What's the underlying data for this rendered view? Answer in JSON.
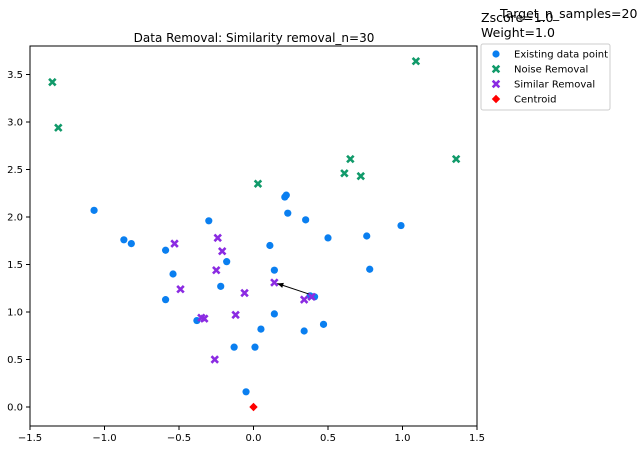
{
  "chart_data": {
    "type": "scatter",
    "title": "Data Removal: Similarity removal_n=30",
    "annotations": [
      "Target_n_samples=20",
      "Zscore=1.0",
      "Weight=1.0"
    ],
    "xlim": [
      -1.5,
      1.5
    ],
    "ylim": [
      -0.2,
      3.8
    ],
    "xticks": [
      "−1.5",
      "−1.0",
      "−0.5",
      "0.0",
      "0.5",
      "1.0",
      "1.5"
    ],
    "yticks": [
      "0.0",
      "0.5",
      "1.0",
      "1.5",
      "2.0",
      "2.5",
      "3.0",
      "3.5"
    ],
    "xtick_values": [
      -1.5,
      -1.0,
      -0.5,
      0.0,
      0.5,
      1.0,
      1.5
    ],
    "ytick_values": [
      0.0,
      0.5,
      1.0,
      1.5,
      2.0,
      2.5,
      3.0,
      3.5
    ],
    "legend_position": "outside-top-right",
    "series": [
      {
        "name": "Existing data point",
        "marker": "circle",
        "color": "#0a7ff0",
        "points": [
          [
            -1.07,
            2.07
          ],
          [
            -0.87,
            1.76
          ],
          [
            -0.82,
            1.72
          ],
          [
            -0.59,
            1.65
          ],
          [
            -0.54,
            1.4
          ],
          [
            -0.59,
            1.13
          ],
          [
            -0.38,
            0.91
          ],
          [
            -0.3,
            1.96
          ],
          [
            -0.22,
            1.27
          ],
          [
            -0.18,
            1.53
          ],
          [
            -0.13,
            0.63
          ],
          [
            0.01,
            0.63
          ],
          [
            0.05,
            0.82
          ],
          [
            -0.05,
            0.16
          ],
          [
            0.11,
            1.7
          ],
          [
            0.14,
            1.44
          ],
          [
            0.14,
            0.98
          ],
          [
            0.21,
            2.21
          ],
          [
            0.22,
            2.23
          ],
          [
            0.23,
            2.04
          ],
          [
            0.35,
            1.97
          ],
          [
            0.34,
            0.8
          ],
          [
            0.38,
            1.17
          ],
          [
            0.41,
            1.16
          ],
          [
            0.47,
            0.87
          ],
          [
            0.5,
            1.78
          ],
          [
            0.76,
            1.8
          ],
          [
            0.78,
            1.45
          ],
          [
            0.99,
            1.91
          ]
        ]
      },
      {
        "name": "Noise Removal",
        "marker": "x",
        "color": "#119a6a",
        "points": [
          [
            -1.35,
            3.42
          ],
          [
            -1.31,
            2.94
          ],
          [
            1.09,
            3.64
          ],
          [
            1.36,
            2.61
          ],
          [
            0.03,
            2.35
          ],
          [
            0.61,
            2.46
          ],
          [
            0.65,
            2.61
          ],
          [
            0.72,
            2.43
          ]
        ]
      },
      {
        "name": "Similar Removal",
        "marker": "x",
        "color": "#8b2be2",
        "points": [
          [
            -0.53,
            1.72
          ],
          [
            -0.49,
            1.24
          ],
          [
            -0.24,
            1.78
          ],
          [
            -0.21,
            1.64
          ],
          [
            -0.25,
            1.44
          ],
          [
            -0.33,
            0.93
          ],
          [
            -0.35,
            0.94
          ],
          [
            -0.12,
            0.97
          ],
          [
            -0.26,
            0.5
          ],
          [
            -0.06,
            1.2
          ],
          [
            0.14,
            1.31
          ],
          [
            0.34,
            1.13
          ],
          [
            0.39,
            1.16
          ]
        ]
      },
      {
        "name": "Centroid",
        "marker": "diamond",
        "color": "#ff0000",
        "points": [
          [
            0.0,
            0.0
          ]
        ]
      }
    ],
    "arrow": {
      "from": [
        0.37,
        1.19
      ],
      "to": [
        0.16,
        1.3
      ]
    }
  }
}
